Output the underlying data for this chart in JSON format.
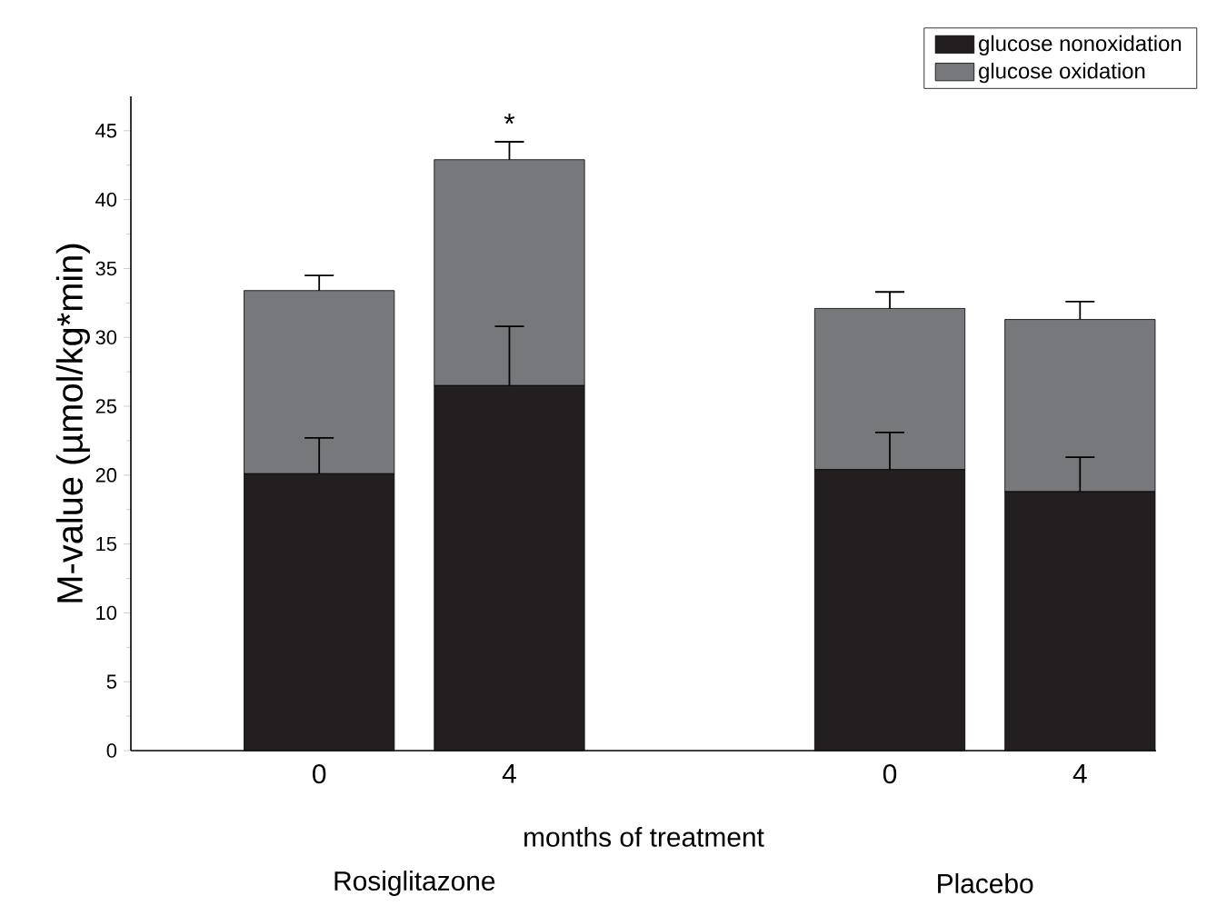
{
  "chart_data": {
    "type": "bar",
    "stacked": true,
    "xlabel": "months of treatment",
    "ylabel": "M-value (µmol/kg*min)",
    "categories": [
      "0",
      "4",
      null,
      "0",
      "4"
    ],
    "series": [
      {
        "name": "glucose nonoxidation",
        "color": "#231f20",
        "values": [
          20.1,
          26.5,
          null,
          20.4,
          18.8
        ],
        "errors": [
          [
            20.1,
            22.7
          ],
          [
            26.5,
            30.8
          ],
          null,
          [
            20.4,
            23.1
          ],
          [
            18.8,
            21.3
          ]
        ]
      },
      {
        "name": "glucose oxidation",
        "color": "#77787b",
        "values": [
          13.3,
          16.4,
          null,
          11.7,
          12.5
        ],
        "errors": [
          [
            33.4,
            34.5
          ],
          [
            42.9,
            44.2
          ],
          null,
          [
            32.1,
            33.3
          ],
          [
            31.3,
            32.6
          ]
        ]
      }
    ],
    "ylim": [
      0,
      47.5
    ],
    "yticks": [
      0,
      5,
      10,
      15,
      20,
      25,
      30,
      35,
      40,
      45
    ],
    "legend": "top right",
    "annotations": [
      "Rosiglitazone",
      "Placebo",
      {
        "text": "*",
        "x": "4",
        "y": 44.2
      }
    ]
  }
}
